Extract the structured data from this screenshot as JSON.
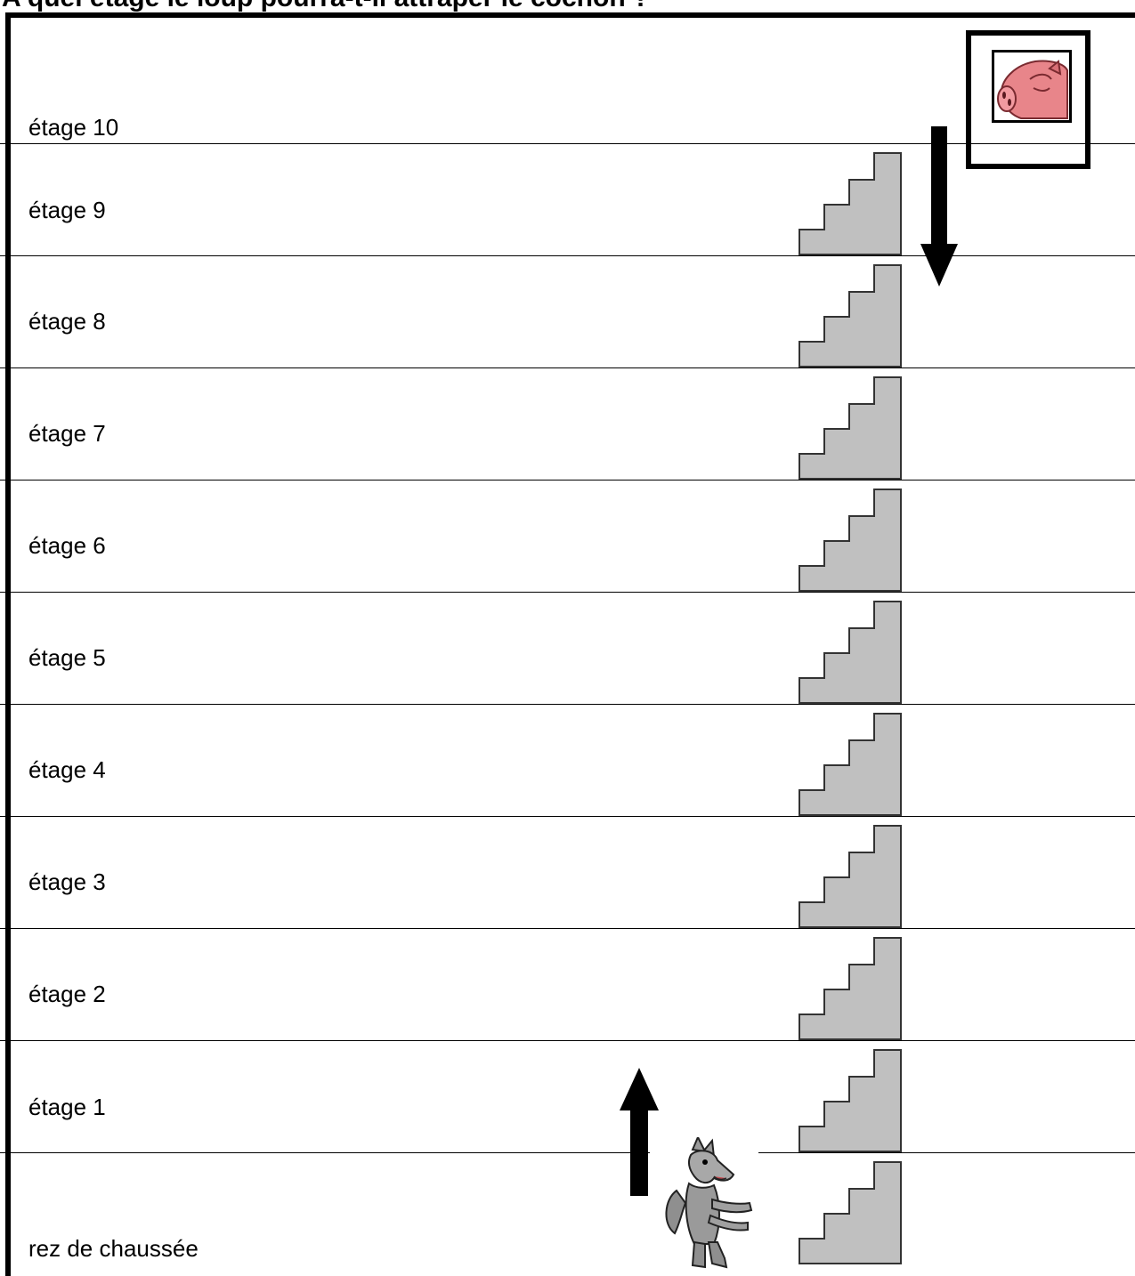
{
  "title": "A quel étage le loup pourra-t-il attraper le cochon ?",
  "floors": [
    "étage 10",
    "étage 9",
    "étage 8",
    "étage 7",
    "étage 6",
    "étage 5",
    "étage 4",
    "étage 3",
    "étage 2",
    "étage 1",
    "rez de chaussée"
  ],
  "icons": {
    "pig": "pig-head-icon",
    "wolf": "wolf-icon",
    "stairs": "stairs-icon",
    "arrow_down": "arrow-down-icon",
    "arrow_up": "arrow-up-icon"
  },
  "colors": {
    "stairs": "#c0c0c0",
    "pig": "#e8858a"
  }
}
